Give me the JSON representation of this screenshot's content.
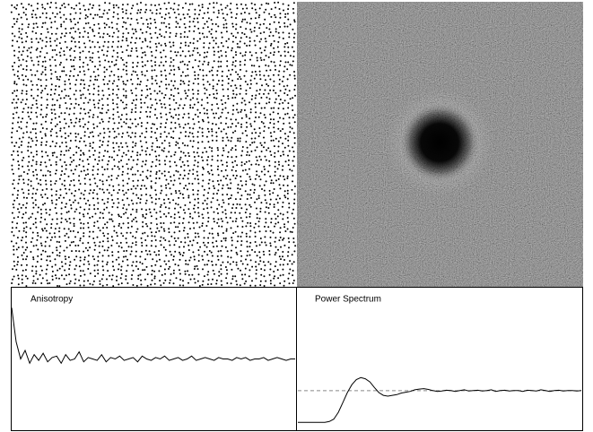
{
  "panels": {
    "anisotropy": {
      "title": "Anisotropy",
      "ylim": [
        0,
        10
      ],
      "values": [
        8.6,
        6.2,
        5.0,
        5.6,
        4.7,
        5.3,
        4.9,
        5.4,
        4.8,
        5.1,
        5.2,
        4.7,
        5.3,
        4.9,
        5.0,
        5.5,
        4.8,
        5.1,
        5.0,
        4.9,
        5.3,
        4.8,
        5.1,
        5.0,
        5.2,
        4.9,
        5.0,
        5.1,
        4.8,
        5.2,
        5.0,
        4.9,
        5.1,
        5.0,
        5.2,
        4.9,
        5.0,
        5.1,
        4.9,
        5.0,
        5.2,
        4.9,
        5.0,
        5.1,
        5.0,
        4.9,
        5.1,
        5.0,
        5.0,
        4.9,
        5.1,
        5.0,
        5.1,
        4.9,
        5.0,
        5.0,
        5.1,
        4.9,
        5.0,
        5.1,
        5.0,
        4.9,
        5.0,
        5.0
      ]
    },
    "power_spectrum": {
      "title": "Power Spectrum",
      "ylim": [
        0,
        3.6
      ],
      "reference": 1,
      "values": [
        0.2,
        0.2,
        0.2,
        0.2,
        0.2,
        0.2,
        0.2,
        0.22,
        0.28,
        0.45,
        0.7,
        0.95,
        1.15,
        1.28,
        1.33,
        1.3,
        1.22,
        1.08,
        0.95,
        0.88,
        0.86,
        0.88,
        0.9,
        0.94,
        0.96,
        0.98,
        1.02,
        1.04,
        1.05,
        1.03,
        1.0,
        0.98,
        0.99,
        1.01,
        1.0,
        0.98,
        1.0,
        1.02,
        0.99,
        1.0,
        1.01,
        0.99,
        1.0,
        1.02,
        0.98,
        1.0,
        1.01,
        0.99,
        1.0,
        1.0,
        0.98,
        1.01,
        1.0,
        0.99,
        1.02,
        1.0,
        0.98,
        1.0,
        1.01,
        0.99,
        1.0,
        1.0,
        0.99,
        1.0
      ]
    }
  }
}
